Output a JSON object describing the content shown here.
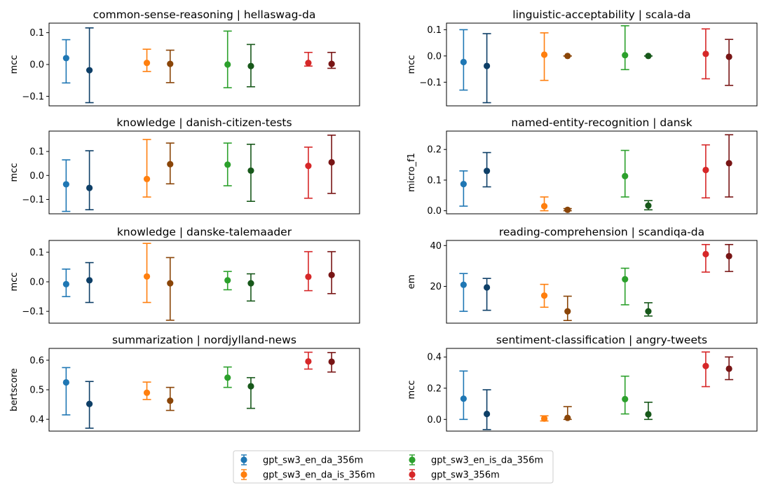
{
  "legend": {
    "entries": [
      {
        "label": "gpt_sw3_en_da_356m",
        "color": "#1f77b4"
      },
      {
        "label": "gpt_sw3_en_da_is_356m",
        "color": "#ff7f0e"
      },
      {
        "label": "gpt_sw3_en_is_da_356m",
        "color": "#2ca02c"
      },
      {
        "label": "gpt_sw3_356m",
        "color": "#d62728"
      }
    ]
  },
  "chart_data": [
    {
      "type": "errorbar",
      "title": "common-sense-reasoning | hellaswag-da",
      "ylabel": "mcc",
      "ylim": [
        -0.13,
        0.13
      ],
      "yticks": [
        -0.1,
        0.0,
        0.1
      ],
      "ytick_labels": [
        "−0.1",
        "0.0",
        "0.1"
      ],
      "series": [
        {
          "color": "#1f77b4",
          "mean": 0.02,
          "low": -0.058,
          "high": 0.078
        },
        {
          "color": "#0e3f67",
          "mean": -0.018,
          "low": -0.12,
          "high": 0.115
        },
        {
          "color": "#ff7f0e",
          "mean": 0.005,
          "low": -0.022,
          "high": 0.048
        },
        {
          "color": "#8a4508",
          "mean": 0.002,
          "low": -0.057,
          "high": 0.045
        },
        {
          "color": "#2ca02c",
          "mean": 0.0,
          "low": -0.073,
          "high": 0.105
        },
        {
          "color": "#17581a",
          "mean": -0.005,
          "low": -0.07,
          "high": 0.063
        },
        {
          "color": "#d62728",
          "mean": 0.005,
          "low": -0.005,
          "high": 0.038
        },
        {
          "color": "#781515",
          "mean": 0.002,
          "low": -0.012,
          "high": 0.038
        }
      ]
    },
    {
      "type": "errorbar",
      "title": "linguistic-acceptability | scala-da",
      "ylabel": "mcc",
      "ylim": [
        -0.19,
        0.125
      ],
      "yticks": [
        -0.1,
        0.0,
        0.1
      ],
      "ytick_labels": [
        "−0.1",
        "0.0",
        "0.1"
      ],
      "series": [
        {
          "color": "#1f77b4",
          "mean": -0.023,
          "low": -0.13,
          "high": 0.1
        },
        {
          "color": "#0e3f67",
          "mean": -0.038,
          "low": -0.178,
          "high": 0.085
        },
        {
          "color": "#ff7f0e",
          "mean": 0.005,
          "low": -0.093,
          "high": 0.088
        },
        {
          "color": "#8a4508",
          "mean": 0.0,
          "low": 0.0,
          "high": 0.0
        },
        {
          "color": "#2ca02c",
          "mean": 0.003,
          "low": -0.052,
          "high": 0.115
        },
        {
          "color": "#17581a",
          "mean": 0.0,
          "low": 0.0,
          "high": 0.0
        },
        {
          "color": "#d62728",
          "mean": 0.008,
          "low": -0.087,
          "high": 0.103
        },
        {
          "color": "#781515",
          "mean": -0.003,
          "low": -0.112,
          "high": 0.063
        }
      ]
    },
    {
      "type": "errorbar",
      "title": "knowledge | danish-citizen-tests",
      "ylabel": "mcc",
      "ylim": [
        -0.16,
        0.185
      ],
      "yticks": [
        -0.1,
        0.0,
        0.1
      ],
      "ytick_labels": [
        "−0.1",
        "0.0",
        "0.1"
      ],
      "series": [
        {
          "color": "#1f77b4",
          "mean": -0.037,
          "low": -0.15,
          "high": 0.065
        },
        {
          "color": "#0e3f67",
          "mean": -0.052,
          "low": -0.143,
          "high": 0.103
        },
        {
          "color": "#ff7f0e",
          "mean": -0.015,
          "low": -0.09,
          "high": 0.15
        },
        {
          "color": "#8a4508",
          "mean": 0.047,
          "low": -0.035,
          "high": 0.135
        },
        {
          "color": "#2ca02c",
          "mean": 0.045,
          "low": -0.043,
          "high": 0.135
        },
        {
          "color": "#17581a",
          "mean": 0.02,
          "low": -0.108,
          "high": 0.13
        },
        {
          "color": "#d62728",
          "mean": 0.04,
          "low": -0.095,
          "high": 0.118
        },
        {
          "color": "#781515",
          "mean": 0.055,
          "low": -0.075,
          "high": 0.168
        }
      ]
    },
    {
      "type": "errorbar",
      "title": "named-entity-recognition | dansk",
      "ylabel": "micro_f1",
      "ylim": [
        -0.01,
        0.26
      ],
      "yticks": [
        0.0,
        0.1,
        0.2
      ],
      "ytick_labels": [
        "0.0",
        "0.1",
        "0.2"
      ],
      "series": [
        {
          "color": "#1f77b4",
          "mean": 0.087,
          "low": 0.015,
          "high": 0.13
        },
        {
          "color": "#0e3f67",
          "mean": 0.13,
          "low": 0.078,
          "high": 0.19
        },
        {
          "color": "#ff7f0e",
          "mean": 0.015,
          "low": 0.0,
          "high": 0.045
        },
        {
          "color": "#8a4508",
          "mean": 0.003,
          "low": 0.0,
          "high": 0.007
        },
        {
          "color": "#2ca02c",
          "mean": 0.113,
          "low": 0.045,
          "high": 0.197
        },
        {
          "color": "#17581a",
          "mean": 0.017,
          "low": 0.003,
          "high": 0.033
        },
        {
          "color": "#d62728",
          "mean": 0.133,
          "low": 0.042,
          "high": 0.215
        },
        {
          "color": "#781515",
          "mean": 0.155,
          "low": 0.045,
          "high": 0.248
        }
      ]
    },
    {
      "type": "errorbar",
      "title": "knowledge | danske-talemaader",
      "ylabel": "mcc",
      "ylim": [
        -0.14,
        0.14
      ],
      "yticks": [
        -0.1,
        0.0,
        0.1
      ],
      "ytick_labels": [
        "−0.1",
        "0.0",
        "0.1"
      ],
      "series": [
        {
          "color": "#1f77b4",
          "mean": -0.008,
          "low": -0.05,
          "high": 0.043
        },
        {
          "color": "#0e3f67",
          "mean": 0.005,
          "low": -0.07,
          "high": 0.065
        },
        {
          "color": "#ff7f0e",
          "mean": 0.018,
          "low": -0.07,
          "high": 0.13
        },
        {
          "color": "#8a4508",
          "mean": -0.005,
          "low": -0.13,
          "high": 0.082
        },
        {
          "color": "#2ca02c",
          "mean": 0.005,
          "low": -0.027,
          "high": 0.035
        },
        {
          "color": "#17581a",
          "mean": -0.005,
          "low": -0.065,
          "high": 0.027
        },
        {
          "color": "#d62728",
          "mean": 0.017,
          "low": -0.03,
          "high": 0.102
        },
        {
          "color": "#781515",
          "mean": 0.023,
          "low": -0.04,
          "high": 0.102
        }
      ]
    },
    {
      "type": "errorbar",
      "title": "reading-comprehension | scandiqa-da",
      "ylabel": "em",
      "ylim": [
        2,
        42.5
      ],
      "yticks": [
        20,
        40
      ],
      "ytick_labels": [
        "20",
        "40"
      ],
      "series": [
        {
          "color": "#1f77b4",
          "mean": 20.8,
          "low": 7.8,
          "high": 26.3
        },
        {
          "color": "#0e3f67",
          "mean": 19.5,
          "low": 8.3,
          "high": 23.9
        },
        {
          "color": "#ff7f0e",
          "mean": 15.5,
          "low": 9.8,
          "high": 21.0
        },
        {
          "color": "#8a4508",
          "mean": 7.8,
          "low": 3.3,
          "high": 15.2
        },
        {
          "color": "#2ca02c",
          "mean": 23.5,
          "low": 11.0,
          "high": 28.9
        },
        {
          "color": "#17581a",
          "mean": 7.8,
          "low": 5.5,
          "high": 12.0
        },
        {
          "color": "#d62728",
          "mean": 35.8,
          "low": 27.0,
          "high": 40.5
        },
        {
          "color": "#781515",
          "mean": 34.8,
          "low": 27.3,
          "high": 40.5
        }
      ]
    },
    {
      "type": "errorbar",
      "title": "summarization | nordjylland-news",
      "ylabel": "bertscore",
      "ylim": [
        0.36,
        0.64
      ],
      "yticks": [
        0.4,
        0.5,
        0.6
      ],
      "ytick_labels": [
        "0.4",
        "0.5",
        "0.6"
      ],
      "series": [
        {
          "color": "#1f77b4",
          "mean": 0.525,
          "low": 0.415,
          "high": 0.575
        },
        {
          "color": "#0e3f67",
          "mean": 0.452,
          "low": 0.37,
          "high": 0.528
        },
        {
          "color": "#ff7f0e",
          "mean": 0.49,
          "low": 0.467,
          "high": 0.526
        },
        {
          "color": "#8a4508",
          "mean": 0.463,
          "low": 0.43,
          "high": 0.508
        },
        {
          "color": "#2ca02c",
          "mean": 0.541,
          "low": 0.508,
          "high": 0.577
        },
        {
          "color": "#17581a",
          "mean": 0.512,
          "low": 0.437,
          "high": 0.541
        },
        {
          "color": "#d62728",
          "mean": 0.596,
          "low": 0.57,
          "high": 0.627
        },
        {
          "color": "#781515",
          "mean": 0.595,
          "low": 0.56,
          "high": 0.626
        }
      ]
    },
    {
      "type": "errorbar",
      "title": "sentiment-classification | angry-tweets",
      "ylabel": "mcc",
      "ylim": [
        -0.075,
        0.455
      ],
      "yticks": [
        0.0,
        0.2,
        0.4
      ],
      "ytick_labels": [
        "0.0",
        "0.2",
        "0.4"
      ],
      "series": [
        {
          "color": "#1f77b4",
          "mean": 0.133,
          "low": 0.0,
          "high": 0.31
        },
        {
          "color": "#0e3f67",
          "mean": 0.035,
          "low": -0.065,
          "high": 0.19
        },
        {
          "color": "#ff7f0e",
          "mean": 0.005,
          "low": -0.01,
          "high": 0.023
        },
        {
          "color": "#8a4508",
          "mean": 0.01,
          "low": 0.0,
          "high": 0.082
        },
        {
          "color": "#2ca02c",
          "mean": 0.13,
          "low": 0.035,
          "high": 0.277
        },
        {
          "color": "#17581a",
          "mean": 0.033,
          "low": 0.0,
          "high": 0.11
        },
        {
          "color": "#d62728",
          "mean": 0.342,
          "low": 0.21,
          "high": 0.432
        },
        {
          "color": "#781515",
          "mean": 0.325,
          "low": 0.255,
          "high": 0.4
        }
      ]
    }
  ]
}
